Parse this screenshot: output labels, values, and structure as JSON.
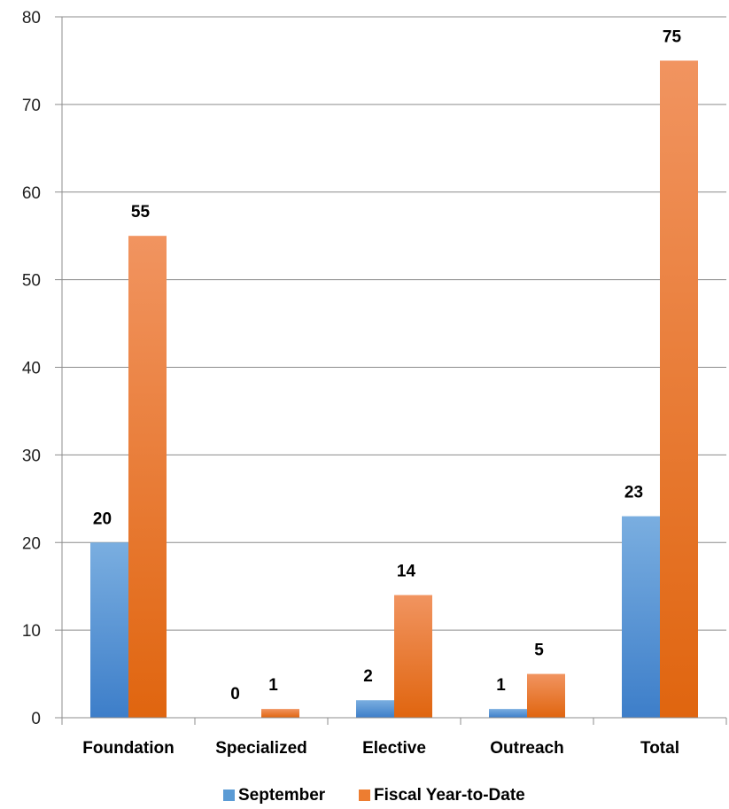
{
  "chart_data": {
    "type": "bar",
    "categories": [
      "Foundation",
      "Specialized",
      "Elective",
      "Outreach",
      "Total"
    ],
    "series": [
      {
        "name": "September",
        "values": [
          20,
          0,
          2,
          1,
          23
        ],
        "color": "#5b9bd5"
      },
      {
        "name": "Fiscal Year-to-Date",
        "values": [
          55,
          1,
          14,
          5,
          75
        ],
        "color": "#ed7d31"
      }
    ],
    "ylim": [
      0,
      80
    ],
    "yticks": [
      0,
      10,
      20,
      30,
      40,
      50,
      60,
      70,
      80
    ],
    "grid": true,
    "legend": "bottom",
    "data_labels": true
  }
}
